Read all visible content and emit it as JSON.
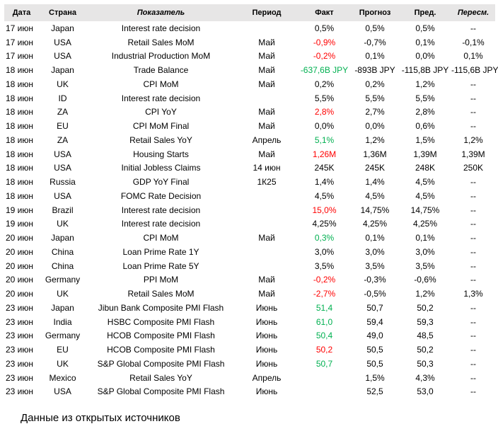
{
  "table": {
    "headers": {
      "date": "Дата",
      "country": "Страна",
      "indicator": "Показатель",
      "period": "Период",
      "actual": "Факт",
      "forecast": "Прогноз",
      "previous": "Пред.",
      "revised": "Пересм."
    },
    "colors": {
      "header_bg": "#e7e6e6",
      "positive": "#00b050",
      "negative": "#ff0000"
    },
    "rows": [
      {
        "date": "17 июн",
        "country": "Japan",
        "indicator": "Interest rate decision",
        "period": "",
        "actual": "0,5%",
        "actual_color": "neutral",
        "forecast": "0,5%",
        "previous": "0,5%",
        "revised": "--"
      },
      {
        "date": "17 июн",
        "country": "USA",
        "indicator": "Retail Sales MoM",
        "period": "Май",
        "actual": "-0,9%",
        "actual_color": "negative",
        "forecast": "-0,7%",
        "previous": "0,1%",
        "revised": "-0,1%"
      },
      {
        "date": "17 июн",
        "country": "USA",
        "indicator": "Industrial Production MoM",
        "period": "Май",
        "actual": "-0,2%",
        "actual_color": "negative",
        "forecast": "0,1%",
        "previous": "0,0%",
        "revised": "0,1%"
      },
      {
        "date": "18 июн",
        "country": "Japan",
        "indicator": "Trade Balance",
        "period": "Май",
        "actual": "-637,6B JPY",
        "actual_color": "positive",
        "forecast": "-893B JPY",
        "previous": "-115,8B JPY",
        "revised": "-115,6B JPY"
      },
      {
        "date": "18 июн",
        "country": "UK",
        "indicator": "CPI MoM",
        "period": "Май",
        "actual": "0,2%",
        "actual_color": "neutral",
        "forecast": "0,2%",
        "previous": "1,2%",
        "revised": "--"
      },
      {
        "date": "18 июн",
        "country": "ID",
        "indicator": "Interest rate decision",
        "period": "",
        "actual": "5,5%",
        "actual_color": "neutral",
        "forecast": "5,5%",
        "previous": "5,5%",
        "revised": "--"
      },
      {
        "date": "18 июн",
        "country": "ZA",
        "indicator": "CPI YoY",
        "period": "Май",
        "actual": "2,8%",
        "actual_color": "negative",
        "forecast": "2,7%",
        "previous": "2,8%",
        "revised": "--"
      },
      {
        "date": "18 июн",
        "country": "EU",
        "indicator": "CPI MoM Final",
        "period": "Май",
        "actual": "0,0%",
        "actual_color": "neutral",
        "forecast": "0,0%",
        "previous": "0,6%",
        "revised": "--"
      },
      {
        "date": "18 июн",
        "country": "ZA",
        "indicator": "Retail Sales YoY",
        "period": "Апрель",
        "actual": "5,1%",
        "actual_color": "positive",
        "forecast": "1,2%",
        "previous": "1,5%",
        "revised": "1,2%"
      },
      {
        "date": "18 июн",
        "country": "USA",
        "indicator": "Housing Starts",
        "period": "Май",
        "actual": "1,26M",
        "actual_color": "negative",
        "forecast": "1,36M",
        "previous": "1,39M",
        "revised": "1,39M"
      },
      {
        "date": "18 июн",
        "country": "USA",
        "indicator": "Initial Jobless Claims",
        "period": "14 июн",
        "actual": "245K",
        "actual_color": "neutral",
        "forecast": "245K",
        "previous": "248K",
        "revised": "250K"
      },
      {
        "date": "18 июн",
        "country": "Russia",
        "indicator": "GDP YoY Final",
        "period": "1К25",
        "actual": "1,4%",
        "actual_color": "neutral",
        "forecast": "1,4%",
        "previous": "4,5%",
        "revised": "--"
      },
      {
        "date": "18 июн",
        "country": "USA",
        "indicator": "FOMC Rate Decision",
        "period": "",
        "actual": "4,5%",
        "actual_color": "neutral",
        "forecast": "4,5%",
        "previous": "4,5%",
        "revised": "--"
      },
      {
        "date": "19 июн",
        "country": "Brazil",
        "indicator": "Interest rate decision",
        "period": "",
        "actual": "15,0%",
        "actual_color": "negative",
        "forecast": "14,75%",
        "previous": "14,75%",
        "revised": "--"
      },
      {
        "date": "19 июн",
        "country": "UK",
        "indicator": "Interest rate decision",
        "period": "",
        "actual": "4,25%",
        "actual_color": "neutral",
        "forecast": "4,25%",
        "previous": "4,25%",
        "revised": "--"
      },
      {
        "date": "20 июн",
        "country": "Japan",
        "indicator": "CPI MoM",
        "period": "Май",
        "actual": "0,3%",
        "actual_color": "positive",
        "forecast": "0,1%",
        "previous": "0,1%",
        "revised": "--"
      },
      {
        "date": "20 июн",
        "country": "China",
        "indicator": "Loan Prime Rate 1Y",
        "period": "",
        "actual": "3,0%",
        "actual_color": "neutral",
        "forecast": "3,0%",
        "previous": "3,0%",
        "revised": "--"
      },
      {
        "date": "20 июн",
        "country": "China",
        "indicator": "Loan Prime Rate 5Y",
        "period": "",
        "actual": "3,5%",
        "actual_color": "neutral",
        "forecast": "3,5%",
        "previous": "3,5%",
        "revised": "--"
      },
      {
        "date": "20 июн",
        "country": "Germany",
        "indicator": "PPI MoM",
        "period": "Май",
        "actual": "-0,2%",
        "actual_color": "negative",
        "forecast": "-0,3%",
        "previous": "-0,6%",
        "revised": "--"
      },
      {
        "date": "20 июн",
        "country": "UK",
        "indicator": "Retail Sales MoM",
        "period": "Май",
        "actual": "-2,7%",
        "actual_color": "negative",
        "forecast": "-0,5%",
        "previous": "1,2%",
        "revised": "1,3%"
      },
      {
        "date": "23 июн",
        "country": "Japan",
        "indicator": "Jibun Bank Composite PMI Flash",
        "period": "Июнь",
        "actual": "51,4",
        "actual_color": "positive",
        "forecast": "50,7",
        "previous": "50,2",
        "revised": "--"
      },
      {
        "date": "23 июн",
        "country": "India",
        "indicator": "HSBC Composite PMI Flash",
        "period": "Июнь",
        "actual": "61,0",
        "actual_color": "positive",
        "forecast": "59,4",
        "previous": "59,3",
        "revised": "--"
      },
      {
        "date": "23 июн",
        "country": "Germany",
        "indicator": "HCOB Composite PMI Flash",
        "period": "Июнь",
        "actual": "50,4",
        "actual_color": "positive",
        "forecast": "49,0",
        "previous": "48,5",
        "revised": "--"
      },
      {
        "date": "23 июн",
        "country": "EU",
        "indicator": "HCOB Composite PMI Flash",
        "period": "Июнь",
        "actual": "50,2",
        "actual_color": "negative",
        "forecast": "50,5",
        "previous": "50,2",
        "revised": "--"
      },
      {
        "date": "23 июн",
        "country": "UK",
        "indicator": "S&P Global Composite PMI Flash",
        "period": "Июнь",
        "actual": "50,7",
        "actual_color": "positive",
        "forecast": "50,5",
        "previous": "50,3",
        "revised": "--"
      },
      {
        "date": "23 июн",
        "country": "Mexico",
        "indicator": "Retail Sales YoY",
        "period": "Апрель",
        "actual": "",
        "actual_color": "neutral",
        "forecast": "1,5%",
        "previous": "4,3%",
        "revised": "--"
      },
      {
        "date": "23 июн",
        "country": "USA",
        "indicator": "S&P Global Composite PMI Flash",
        "period": "Июнь",
        "actual": "",
        "actual_color": "neutral",
        "forecast": "52,5",
        "previous": "53,0",
        "revised": "--"
      }
    ]
  },
  "footer": {
    "source_note": "Данные из открытых источников"
  }
}
